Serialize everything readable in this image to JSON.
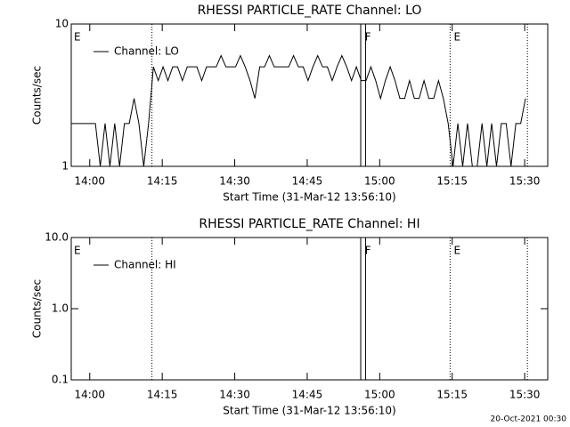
{
  "chart_data": [
    {
      "type": "line",
      "title": "RHESSI PARTICLE_RATE Channel: LO",
      "xlabel": "Start Time (31-Mar-12 13:56:10)",
      "ylabel": "Counts/sec",
      "x": [
        0,
        1,
        2,
        3,
        4,
        5,
        6,
        7,
        8,
        9,
        10,
        11,
        12,
        13,
        14,
        15,
        16,
        17,
        18,
        19,
        20,
        21,
        22,
        23,
        24,
        25,
        26,
        27,
        28,
        29,
        30,
        31,
        32,
        33,
        34,
        35,
        36,
        37,
        38,
        39,
        40,
        41,
        42,
        43,
        44,
        45,
        46,
        47,
        48,
        49,
        50,
        51,
        52,
        53,
        54,
        55,
        56,
        57,
        58,
        59,
        60,
        61,
        62,
        63,
        64,
        65,
        66,
        67,
        68,
        69,
        70,
        71,
        72,
        73,
        74,
        75,
        76,
        77,
        78,
        79,
        80,
        81,
        82,
        83,
        84,
        85,
        86,
        87,
        88,
        89,
        90,
        91,
        92,
        93,
        94
      ],
      "series": [
        {
          "name": "Channel: LO",
          "color": "#000000",
          "values": [
            2,
            2,
            2,
            2,
            2,
            2,
            1,
            2,
            1,
            2,
            1,
            2,
            2,
            3,
            2,
            1,
            2,
            5,
            4,
            5,
            4,
            5,
            5,
            4,
            5,
            5,
            5,
            4,
            5,
            5,
            5,
            6,
            5,
            5,
            5,
            6,
            5,
            4,
            3,
            5,
            5,
            6,
            5,
            5,
            5,
            5,
            6,
            5,
            5,
            4,
            5,
            6,
            5,
            5,
            4,
            5,
            6,
            5,
            4,
            5,
            4,
            4,
            5,
            4,
            3,
            4,
            5,
            4,
            3,
            3,
            4,
            3,
            3,
            4,
            3,
            3,
            4,
            3,
            2,
            1,
            2,
            1,
            2,
            1,
            1,
            2,
            1,
            2,
            1,
            2,
            2,
            1,
            2,
            2,
            3
          ]
        }
      ],
      "xlim": [
        0,
        98.6
      ],
      "xticks": [
        {
          "value": 3.83,
          "label": "14:00"
        },
        {
          "value": 18.83,
          "label": "14:15"
        },
        {
          "value": 33.83,
          "label": "14:30"
        },
        {
          "value": 48.83,
          "label": "14:45"
        },
        {
          "value": 63.83,
          "label": "15:00"
        },
        {
          "value": 78.83,
          "label": "15:15"
        },
        {
          "value": 93.83,
          "label": "15:30"
        }
      ],
      "ylim": [
        1,
        10
      ],
      "yticks": [
        1,
        10
      ],
      "log_y": true,
      "vlines": [
        {
          "x": 16.7,
          "style": "dotted"
        },
        {
          "x": 59.9,
          "style": "solid"
        },
        {
          "x": 60.9,
          "style": "solid"
        },
        {
          "x": 78.4,
          "style": "dotted"
        },
        {
          "x": 94.4,
          "style": "dotted"
        }
      ],
      "flags": [
        {
          "x": 0,
          "label": "E"
        },
        {
          "x": 60.2,
          "label": "F"
        },
        {
          "x": 78.6,
          "label": "E"
        }
      ]
    },
    {
      "type": "line",
      "title": "RHESSI PARTICLE_RATE Channel: HI",
      "xlabel": "Start Time (31-Mar-12 13:56:10)",
      "ylabel": "Counts/sec",
      "x": [],
      "series": [
        {
          "name": "Channel: HI",
          "color": "#000000",
          "values": []
        }
      ],
      "xlim": [
        0,
        98.6
      ],
      "xticks": [
        {
          "value": 3.83,
          "label": "14:00"
        },
        {
          "value": 18.83,
          "label": "14:15"
        },
        {
          "value": 33.83,
          "label": "14:30"
        },
        {
          "value": 48.83,
          "label": "14:45"
        },
        {
          "value": 63.83,
          "label": "15:00"
        },
        {
          "value": 78.83,
          "label": "15:15"
        },
        {
          "value": 93.83,
          "label": "15:30"
        }
      ],
      "ylim": [
        0.1,
        10
      ],
      "yticks": [
        {
          "value": 0.1,
          "label": "0.1"
        },
        {
          "value": 1,
          "label": "1.0"
        },
        {
          "value": 10,
          "label": "10.0"
        }
      ],
      "log_y": true,
      "vlines": [
        {
          "x": 16.7,
          "style": "dotted"
        },
        {
          "x": 59.9,
          "style": "solid"
        },
        {
          "x": 60.9,
          "style": "solid"
        },
        {
          "x": 78.4,
          "style": "dotted"
        },
        {
          "x": 94.4,
          "style": "dotted"
        }
      ],
      "flags": [
        {
          "x": 0,
          "label": "E"
        },
        {
          "x": 60.2,
          "label": "F"
        },
        {
          "x": 78.6,
          "label": "E"
        }
      ]
    }
  ],
  "footer": "20-Oct-2021 00:30"
}
